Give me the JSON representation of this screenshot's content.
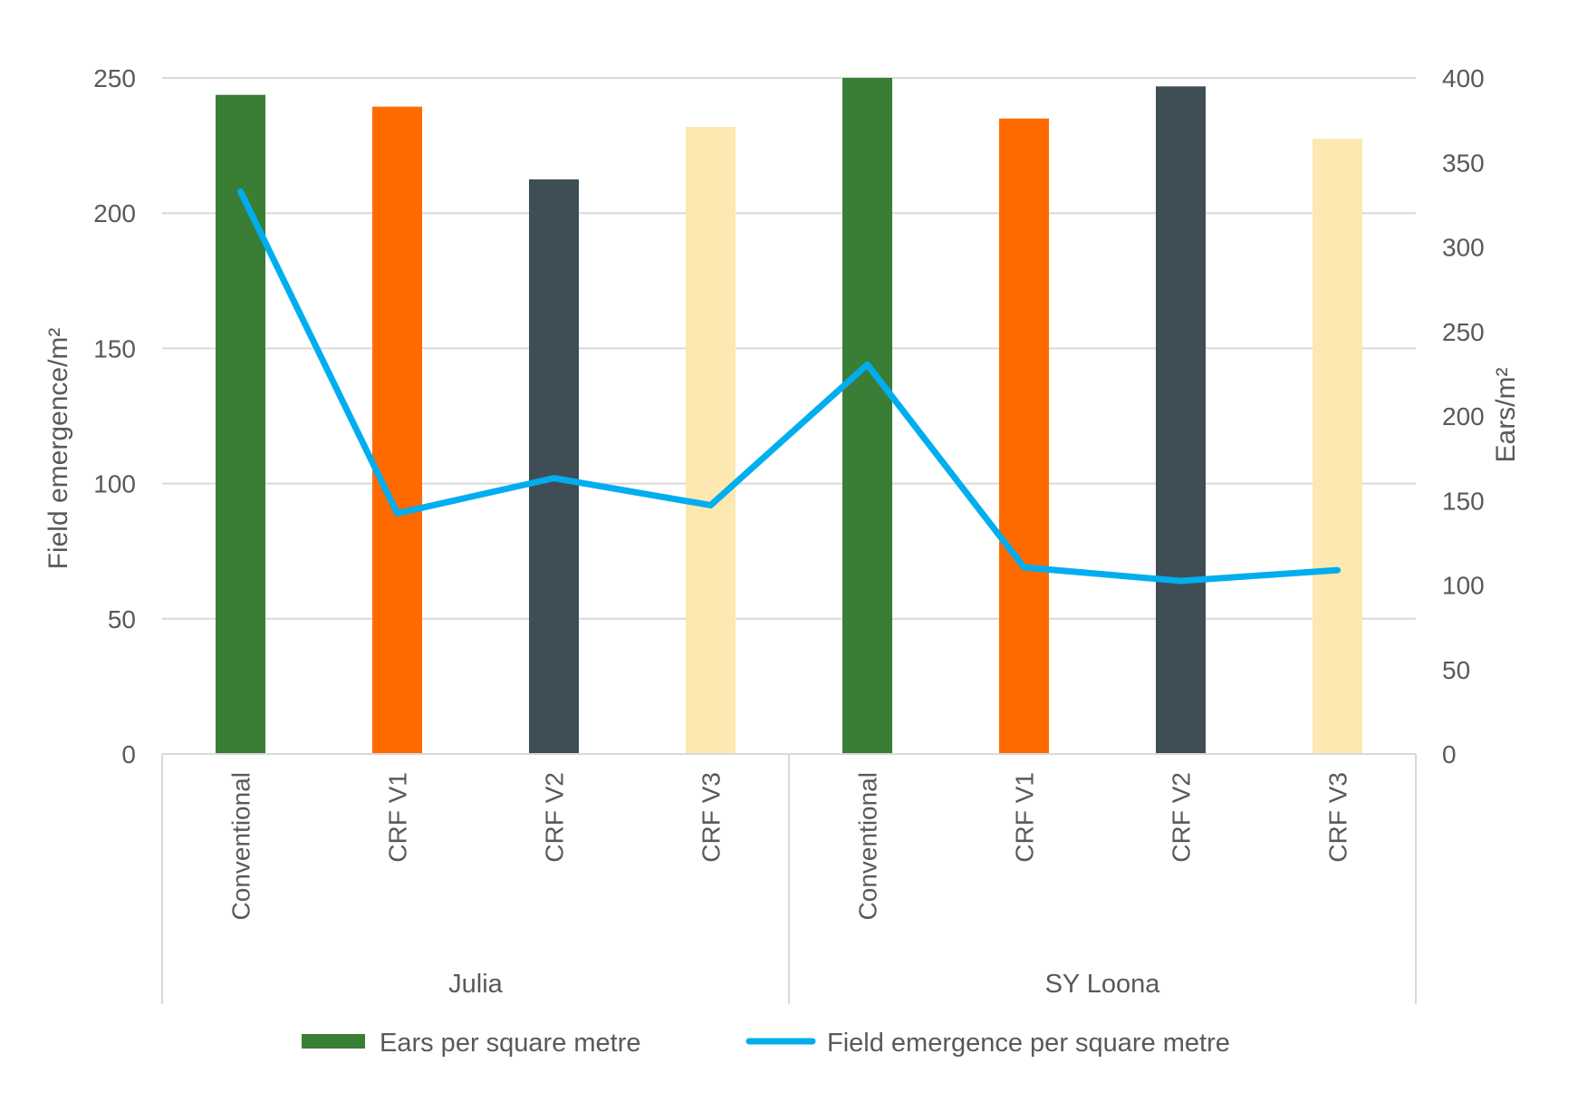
{
  "chart_data": {
    "type": "bar",
    "groups": [
      {
        "name": "Julia",
        "categories": [
          "Conventional",
          "CRF V1",
          "CRF V2",
          "CRF V3"
        ]
      },
      {
        "name": "SY Loona",
        "categories": [
          "Conventional",
          "CRF V1",
          "CRF V2",
          "CRF V3"
        ]
      }
    ],
    "bar_colors": [
      "#3a7d35",
      "#ff6a00",
      "#3f4d55",
      "#fce8b0"
    ],
    "line_color": "#00aeef",
    "series": [
      {
        "name": "Ears per square metre",
        "type": "bar",
        "axis": "right",
        "values": [
          390,
          383,
          340,
          371,
          400,
          376,
          395,
          364
        ]
      },
      {
        "name": "Field emergence per square metre",
        "type": "line",
        "axis": "left",
        "values": [
          208,
          89,
          102,
          92,
          144,
          69,
          64,
          68
        ]
      }
    ],
    "ylabel": "Field emergence/m²",
    "y2label": "Ears/m²",
    "ylim": [
      0,
      250
    ],
    "y2lim": [
      0,
      400
    ],
    "yticks": [
      "0",
      "50",
      "100",
      "150",
      "200",
      "250"
    ],
    "y2ticks": [
      "0",
      "50",
      "100",
      "150",
      "200",
      "250",
      "300",
      "350",
      "400"
    ],
    "grid": true,
    "legend_position": "bottom"
  }
}
